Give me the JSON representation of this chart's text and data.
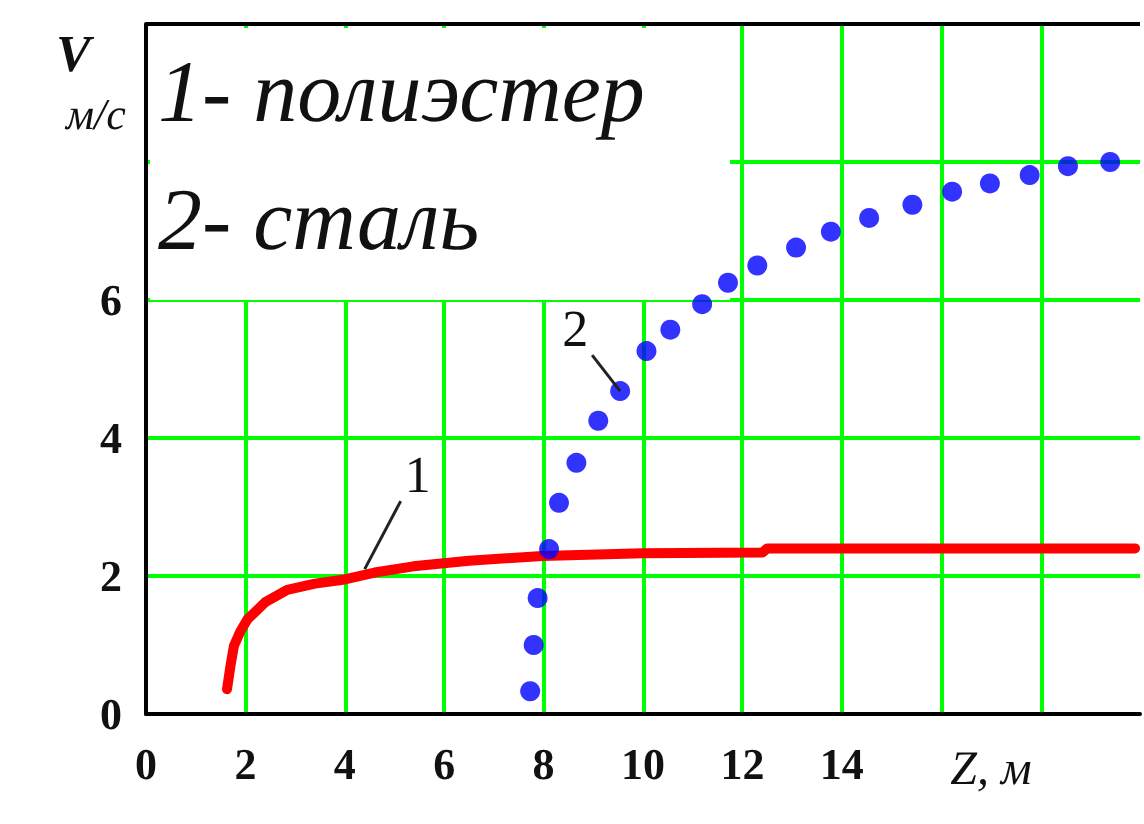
{
  "chart_data": {
    "type": "line",
    "ylabel": "V\nм/с",
    "xlabel": "Z, м",
    "xlim": [
      0,
      20
    ],
    "xticks": [
      0,
      2,
      4,
      6,
      8,
      10,
      12,
      14,
      {
        "value": 16,
        "label": null
      },
      {
        "value": 18,
        "label": null
      }
    ],
    "ylim": [
      0,
      10
    ],
    "yticks": [
      0,
      2,
      4,
      6,
      {
        "value": 8,
        "label": null
      }
    ],
    "grid": true,
    "annotations": [
      "1- полиэстер",
      "2- сталь",
      {
        "text": "1",
        "x": 4.4,
        "y": 2.1
      },
      {
        "text": "2",
        "x": 9.54,
        "y": 4.68
      }
    ],
    "series": [
      {
        "color": "#ff0000",
        "marker": "none",
        "line_style": "solid",
        "x": [
          1.63,
          1.7,
          1.77,
          1.9,
          2.04,
          2.4,
          2.84,
          3.4,
          4.0,
          4.6,
          5.38,
          6.5,
          7.97,
          10.0,
          12.4,
          12.5,
          15,
          17.5,
          19.9
        ],
        "values": [
          0.36,
          0.7,
          0.99,
          1.2,
          1.37,
          1.62,
          1.8,
          1.89,
          1.95,
          2.05,
          2.14,
          2.22,
          2.29,
          2.33,
          2.34,
          2.4,
          2.4,
          2.4,
          2.4
        ]
      },
      {
        "type": "scatter",
        "color": "#0000ff",
        "marker": "circle",
        "x": [
          7.73,
          7.8,
          7.88,
          8.11,
          8.31,
          8.66,
          9.1,
          9.54,
          10.07,
          10.55,
          11.19,
          11.71,
          12.3,
          13.08,
          13.78,
          14.55,
          15.42,
          16.22,
          16.98,
          17.78,
          18.55,
          19.4
        ],
        "values": [
          0.33,
          1.0,
          1.68,
          2.39,
          3.06,
          3.64,
          4.25,
          4.68,
          5.26,
          5.57,
          5.94,
          6.25,
          6.5,
          6.76,
          6.99,
          7.19,
          7.38,
          7.57,
          7.69,
          7.81,
          7.94,
          8.0
        ]
      }
    ]
  }
}
